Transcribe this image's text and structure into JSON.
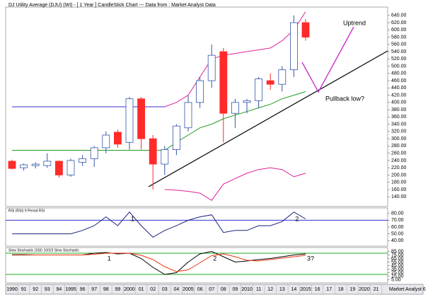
{
  "title": "DJ Utility Average (DJU) (WI) -  [ 1 Year ] CandleStick Chart --- Data from : Market Analyst Data",
  "footer": "Market Analyst 6",
  "annotations": {
    "uptrend": "Uptrend",
    "pullback": "Pullback low?"
  },
  "chart_data": [
    {
      "type": "candlestick",
      "categories": [
        "1990",
        "91",
        "92",
        "93",
        "94",
        "1995",
        "96",
        "97",
        "98",
        "99",
        "2000",
        "01",
        "02",
        "03",
        "04",
        "2005",
        "06",
        "07",
        "08",
        "09",
        "2010",
        "11",
        "12",
        "13",
        "14",
        "2015",
        "16",
        "17",
        "18",
        "19",
        "2020",
        "21"
      ],
      "open": [
        238,
        220,
        226,
        226,
        238,
        200,
        235,
        245,
        275,
        318,
        290,
        410,
        300,
        230,
        270,
        330,
        400,
        460,
        540,
        370,
        400,
        405,
        460,
        450,
        490,
        620,
        null,
        null,
        null,
        null,
        null,
        null
      ],
      "high": [
        242,
        232,
        235,
        260,
        240,
        245,
        255,
        280,
        320,
        325,
        415,
        415,
        310,
        280,
        340,
        420,
        470,
        560,
        550,
        410,
        410,
        470,
        480,
        500,
        640,
        630,
        null,
        null,
        null,
        null,
        null,
        null
      ],
      "low": [
        215,
        212,
        218,
        220,
        193,
        195,
        225,
        222,
        260,
        275,
        270,
        270,
        160,
        200,
        255,
        320,
        385,
        440,
        290,
        330,
        370,
        385,
        435,
        430,
        470,
        570,
        null,
        null,
        null,
        null,
        null,
        null
      ],
      "close": [
        218,
        228,
        230,
        238,
        200,
        240,
        245,
        275,
        310,
        285,
        410,
        300,
        230,
        270,
        335,
        400,
        460,
        530,
        370,
        400,
        405,
        465,
        450,
        490,
        620,
        580,
        null,
        null,
        null,
        null,
        null,
        null
      ],
      "up_color": "#ffffff",
      "up_outline": "#3355aa",
      "down_color": "#ff2a2a",
      "series": [
        {
          "color": "#3333cc",
          "values": [
            388,
            388,
            388,
            388,
            388,
            388,
            388,
            388,
            388,
            388,
            388,
            388,
            388,
            388,
            null,
            null,
            null,
            null,
            null,
            null,
            null,
            null,
            null,
            null,
            null,
            null,
            null,
            null,
            null,
            null,
            null,
            null
          ]
        },
        {
          "color": "#dd2299",
          "values": [
            null,
            null,
            null,
            null,
            null,
            null,
            null,
            null,
            null,
            null,
            null,
            null,
            null,
            388,
            400,
            420,
            470,
            520,
            530,
            535,
            540,
            545,
            550,
            570,
            600,
            650,
            null,
            null,
            null,
            null,
            null,
            null
          ]
        },
        {
          "color": "#229922",
          "values": [
            268,
            268,
            268,
            268,
            268,
            268,
            268,
            268,
            268,
            268,
            268,
            268,
            268,
            268,
            290,
            310,
            330,
            340,
            355,
            365,
            375,
            385,
            395,
            410,
            420,
            430,
            null,
            null,
            null,
            null,
            null,
            null
          ]
        },
        {
          "color": "#dd2299",
          "values": [
            null,
            null,
            null,
            null,
            null,
            null,
            null,
            null,
            null,
            null,
            null,
            null,
            null,
            160,
            158,
            155,
            150,
            130,
            175,
            190,
            205,
            215,
            220,
            215,
            195,
            205,
            null,
            null,
            null,
            null,
            null,
            null
          ]
        }
      ],
      "ylim": [
        117,
        659
      ],
      "yticks": [
        {
          "value": 640,
          "label": "640.00"
        },
        {
          "value": 620,
          "label": "620.00"
        },
        {
          "value": 600,
          "label": "600.00"
        },
        {
          "value": 580,
          "label": "580.00"
        },
        {
          "value": 560,
          "label": "560.00"
        },
        {
          "value": 540,
          "label": "540.00"
        },
        {
          "value": 520,
          "label": "520.00"
        },
        {
          "value": 500,
          "label": "500.00"
        },
        {
          "value": 480,
          "label": "480.00"
        },
        {
          "value": 460,
          "label": "460.00"
        },
        {
          "value": 440,
          "label": "440.00"
        },
        {
          "value": 420,
          "label": "420.00"
        },
        {
          "value": 400,
          "label": "400.00"
        },
        {
          "value": 380,
          "label": "380.00"
        },
        {
          "value": 360,
          "label": "360.00"
        },
        {
          "value": 340,
          "label": "340.00"
        },
        {
          "value": 320,
          "label": "320.00"
        },
        {
          "value": 300,
          "label": "300.00"
        },
        {
          "value": 280,
          "label": "280.00"
        },
        {
          "value": 260,
          "label": "260.00"
        },
        {
          "value": 240,
          "label": "240.00"
        },
        {
          "value": 220,
          "label": "220.00"
        },
        {
          "value": 200,
          "label": "200.00"
        },
        {
          "value": 180,
          "label": "180.00"
        },
        {
          "value": 160,
          "label": "160.00"
        },
        {
          "value": 140,
          "label": "140.00"
        }
      ]
    },
    {
      "type": "line",
      "title": "RSI (RSI) 9 Period RSI",
      "series": [
        {
          "color": "#1a237e",
          "values": [
            50,
            50,
            50,
            50,
            50,
            50,
            55,
            62,
            75,
            62,
            82,
            62,
            45,
            55,
            62,
            70,
            75,
            78,
            52,
            55,
            55,
            62,
            62,
            68,
            82,
            72,
            null,
            null,
            null,
            null,
            null,
            null
          ]
        }
      ],
      "levels": [
        70
      ],
      "level_color": "#3333cc",
      "ylim": [
        34,
        86
      ],
      "yticks": [
        {
          "value": 80,
          "label": "80.00"
        },
        {
          "value": 70,
          "label": "70.00"
        },
        {
          "value": 60,
          "label": "60.00"
        },
        {
          "value": 50,
          "label": "50.00"
        },
        {
          "value": 40,
          "label": "40.00"
        }
      ],
      "notes": [
        {
          "text": "1",
          "at": 10
        },
        {
          "text": "2",
          "at": 24
        }
      ]
    },
    {
      "type": "line",
      "title": "Slow Stochastic (SSI) 10/3/3 Slow Stochastic",
      "series": [
        {
          "color": "#000000",
          "values": [
            75,
            75,
            75,
            75,
            75,
            75,
            75,
            80,
            82,
            78,
            80,
            65,
            40,
            20,
            25,
            55,
            78,
            85,
            70,
            55,
            58,
            62,
            65,
            70,
            75,
            78,
            null,
            null,
            null,
            null,
            null,
            null
          ]
        },
        {
          "color": "#ee3311",
          "values": [
            76,
            76,
            75,
            75,
            75,
            75,
            75,
            77,
            80,
            80,
            80,
            74,
            62,
            42,
            28,
            33,
            53,
            73,
            78,
            70,
            60,
            58,
            62,
            66,
            70,
            74,
            null,
            null,
            null,
            null,
            null,
            null
          ]
        }
      ],
      "levels": [
        80,
        20
      ],
      "level_color": "#22aa22",
      "ylim": [
        0,
        92
      ],
      "yticks": [
        {
          "value": 85,
          "label": "85.00"
        },
        {
          "value": 75,
          "label": "75.00"
        },
        {
          "value": 65,
          "label": "65.00"
        },
        {
          "value": 55,
          "label": "55.00"
        },
        {
          "value": 45,
          "label": "45.00"
        },
        {
          "value": 35,
          "label": "35.00"
        },
        {
          "value": 25,
          "label": "25.00"
        },
        {
          "value": 15,
          "label": "15.00"
        },
        {
          "value": 5,
          "label": "5.00"
        }
      ],
      "notes": [
        {
          "text": "1",
          "at": 8
        },
        {
          "text": "2",
          "at": 17
        },
        {
          "text": "3?",
          "at": 25
        }
      ]
    }
  ]
}
